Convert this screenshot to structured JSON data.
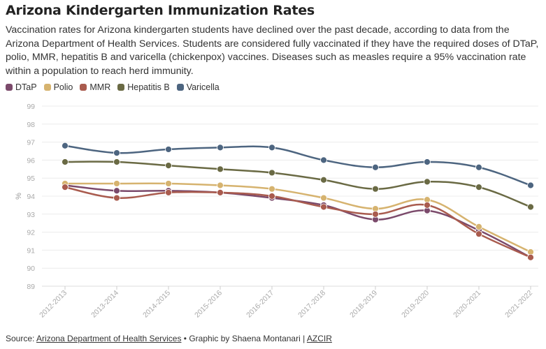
{
  "title": "Arizona Kindergarten Immunization Rates",
  "subtitle": "Vaccination rates for Arizona kindergarten students have declined over the past decade, according to data from the Arizona Department of Health Services. Students are considered fully vaccinated if they have the required doses of DTaP, polio, MMR, hepatitis B and varicella (chickenpox) vaccines. Diseases such as measles require a 95% vaccination rate within a population to reach herd immunity.",
  "source": {
    "prefix": "Source: ",
    "link": "Arizona Department of Health Services",
    "middle": " • Graphic by Shaena Montanari | ",
    "link2": "AZCIR"
  },
  "chart_data": {
    "type": "line",
    "ylabel": "%",
    "xlabel": "",
    "ylim": [
      89,
      99
    ],
    "yticks": [
      89,
      90,
      91,
      92,
      93,
      94,
      95,
      96,
      97,
      98,
      99
    ],
    "grid": true,
    "legend_position": "top-left",
    "categories": [
      "2012-2013",
      "2013-2014",
      "2014-2015",
      "2015-2016",
      "2016-2017",
      "2017-2018",
      "2018-2019",
      "2019-2020",
      "2020-2021",
      "2021-2022"
    ],
    "series": [
      {
        "name": "DTaP",
        "color": "#7b4a6b",
        "values": [
          94.6,
          94.3,
          94.3,
          94.2,
          93.9,
          93.5,
          92.7,
          93.2,
          92.1,
          90.6
        ]
      },
      {
        "name": "Polio",
        "color": "#d6b36f",
        "values": [
          94.7,
          94.7,
          94.7,
          94.6,
          94.4,
          93.9,
          93.3,
          93.8,
          92.3,
          90.9
        ]
      },
      {
        "name": "MMR",
        "color": "#a95b4e",
        "values": [
          94.5,
          93.9,
          94.2,
          94.2,
          94.0,
          93.4,
          93.0,
          93.5,
          91.9,
          90.6
        ]
      },
      {
        "name": "Hepatitis B",
        "color": "#6a6a44",
        "values": [
          95.9,
          95.9,
          95.7,
          95.5,
          95.3,
          94.9,
          94.4,
          94.8,
          94.5,
          93.4
        ]
      },
      {
        "name": "Varicella",
        "color": "#4d6580",
        "values": [
          96.8,
          96.4,
          96.6,
          96.7,
          96.7,
          96.0,
          95.6,
          95.9,
          95.6,
          94.6
        ]
      }
    ]
  }
}
